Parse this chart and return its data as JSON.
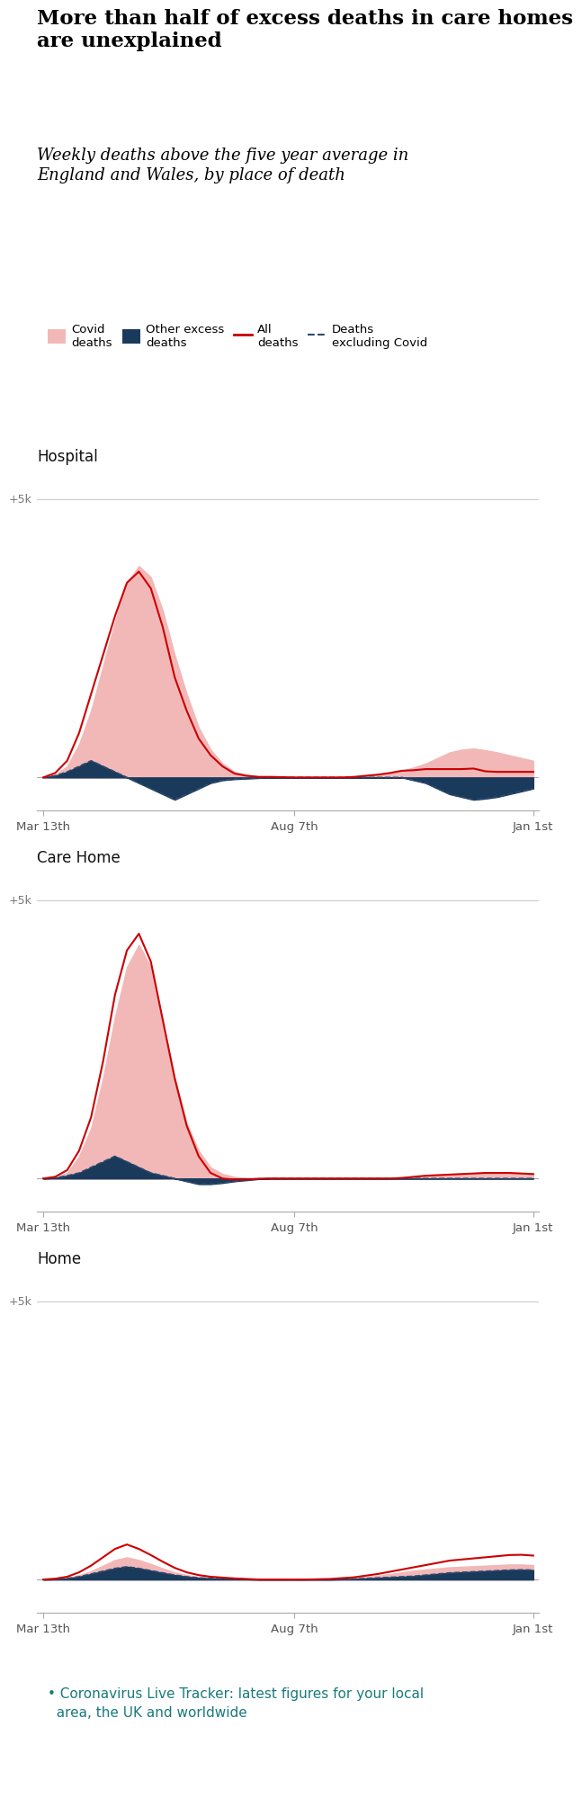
{
  "title_bold": "More than half of excess deaths in care homes\nare unexplained",
  "title_italic": "Weekly deaths above the five year average in\nEngland and Wales, by place of death",
  "link_line1": "• Coronavirus Live Tracker: latest figures for your local",
  "link_line2": "  area, the UK and worldwide",
  "link_color": "#1a7a7a",
  "background_color": "#ffffff",
  "sections": [
    "Hospital",
    "Care Home",
    "Home"
  ],
  "legend": {
    "covid_color": "#f2b8b8",
    "other_excess_color": "#1a3a5c",
    "all_deaths_color": "#cc0000",
    "excl_covid_color": "#2c4a6e"
  },
  "x_labels": [
    "Mar 13th",
    "Aug 7th",
    "Jan 1st"
  ],
  "ylim": [
    -600,
    5500
  ],
  "hospital": {
    "weeks": 42,
    "covid": [
      0,
      50,
      200,
      600,
      1200,
      2000,
      2800,
      3500,
      3800,
      3600,
      3000,
      2200,
      1500,
      900,
      500,
      250,
      100,
      50,
      20,
      10,
      5,
      0,
      0,
      0,
      0,
      0,
      10,
      30,
      50,
      80,
      120,
      180,
      250,
      350,
      450,
      500,
      520,
      490,
      450,
      400,
      350,
      300
    ],
    "other_excess": [
      0,
      30,
      100,
      200,
      300,
      200,
      100,
      0,
      -100,
      -200,
      -300,
      -400,
      -300,
      -200,
      -100,
      -50,
      -30,
      -20,
      -10,
      0,
      0,
      0,
      0,
      0,
      0,
      0,
      0,
      0,
      0,
      0,
      0,
      -50,
      -100,
      -200,
      -300,
      -350,
      -400,
      -380,
      -350,
      -300,
      -250,
      -200
    ],
    "all_deaths": [
      0,
      80,
      300,
      800,
      1500,
      2200,
      2900,
      3500,
      3700,
      3400,
      2700,
      1800,
      1200,
      700,
      400,
      200,
      70,
      30,
      10,
      10,
      5,
      0,
      0,
      0,
      0,
      0,
      10,
      30,
      50,
      80,
      120,
      130,
      150,
      150,
      150,
      150,
      160,
      110,
      100,
      100,
      100,
      100
    ],
    "excl_covid": [
      0,
      30,
      100,
      200,
      300,
      200,
      100,
      0,
      -100,
      -200,
      -300,
      -400,
      -300,
      -200,
      -100,
      -50,
      -30,
      -20,
      -10,
      0,
      0,
      0,
      0,
      0,
      0,
      0,
      0,
      0,
      0,
      0,
      0,
      -50,
      -100,
      -200,
      -300,
      -350,
      -400,
      -380,
      -350,
      -300,
      -250,
      -200
    ]
  },
  "care_home": {
    "weeks": 42,
    "covid": [
      0,
      20,
      100,
      400,
      900,
      1800,
      2900,
      3800,
      4200,
      3800,
      2800,
      1800,
      1000,
      500,
      200,
      80,
      30,
      10,
      5,
      0,
      0,
      0,
      0,
      0,
      0,
      0,
      0,
      0,
      0,
      0,
      10,
      30,
      50,
      60,
      70,
      80,
      90,
      100,
      100,
      100,
      90,
      80
    ],
    "other_excess": [
      0,
      10,
      50,
      100,
      200,
      300,
      400,
      300,
      200,
      100,
      50,
      0,
      -50,
      -100,
      -100,
      -80,
      -50,
      -30,
      -10,
      0,
      0,
      0,
      0,
      0,
      0,
      0,
      0,
      0,
      0,
      0,
      0,
      0,
      0,
      0,
      0,
      0,
      0,
      0,
      0,
      0,
      0,
      0
    ],
    "all_deaths": [
      0,
      30,
      150,
      500,
      1100,
      2100,
      3300,
      4100,
      4400,
      3900,
      2850,
      1800,
      950,
      400,
      100,
      0,
      -20,
      -20,
      -5,
      0,
      0,
      0,
      0,
      0,
      0,
      0,
      0,
      0,
      0,
      0,
      10,
      30,
      50,
      60,
      70,
      80,
      90,
      100,
      100,
      100,
      90,
      80
    ],
    "excl_covid": [
      0,
      10,
      50,
      100,
      200,
      300,
      400,
      300,
      200,
      100,
      50,
      0,
      -50,
      -100,
      -100,
      -80,
      -50,
      -30,
      -10,
      0,
      0,
      0,
      0,
      0,
      0,
      0,
      0,
      0,
      0,
      0,
      0,
      0,
      0,
      0,
      0,
      0,
      0,
      0,
      0,
      0,
      0,
      0
    ]
  },
  "home": {
    "weeks": 42,
    "covid": [
      0,
      10,
      30,
      80,
      150,
      250,
      350,
      400,
      350,
      280,
      200,
      130,
      80,
      50,
      30,
      20,
      10,
      5,
      0,
      0,
      0,
      0,
      0,
      5,
      10,
      20,
      30,
      50,
      70,
      100,
      130,
      160,
      180,
      200,
      220,
      230,
      240,
      250,
      260,
      270,
      270,
      260
    ],
    "other_excess": [
      0,
      5,
      20,
      50,
      100,
      150,
      200,
      230,
      200,
      160,
      120,
      80,
      50,
      30,
      20,
      15,
      10,
      5,
      0,
      0,
      0,
      0,
      0,
      0,
      0,
      5,
      10,
      20,
      30,
      40,
      50,
      60,
      80,
      100,
      120,
      130,
      140,
      150,
      160,
      170,
      175,
      170
    ],
    "all_deaths": [
      0,
      15,
      50,
      130,
      250,
      400,
      550,
      630,
      550,
      440,
      320,
      210,
      130,
      80,
      50,
      35,
      20,
      10,
      0,
      0,
      0,
      0,
      0,
      5,
      10,
      25,
      40,
      70,
      100,
      140,
      180,
      220,
      260,
      300,
      340,
      360,
      380,
      400,
      420,
      440,
      445,
      430
    ],
    "excl_covid": [
      0,
      5,
      20,
      50,
      100,
      150,
      200,
      230,
      200,
      160,
      120,
      80,
      50,
      30,
      20,
      15,
      10,
      5,
      0,
      0,
      0,
      0,
      0,
      0,
      0,
      5,
      10,
      20,
      30,
      40,
      50,
      60,
      80,
      100,
      120,
      130,
      140,
      150,
      160,
      170,
      175,
      170
    ]
  }
}
